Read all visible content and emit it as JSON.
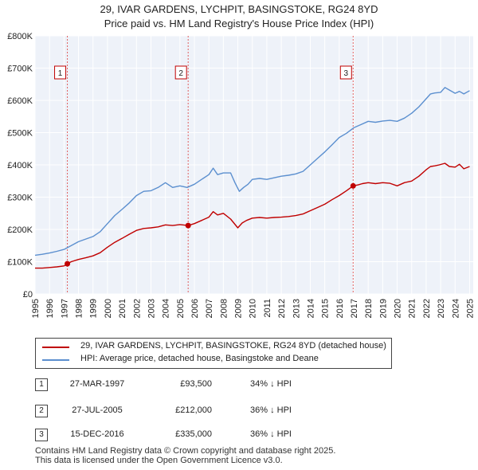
{
  "title_line1": "29, IVAR GARDENS, LYCHPIT, BASINGSTOKE, RG24 8YD",
  "title_line2": "Price paid vs. HM Land Registry's House Price Index (HPI)",
  "chart_data": {
    "type": "line",
    "title": "29, IVAR GARDENS, LYCHPIT, BASINGSTOKE, RG24 8YD",
    "subtitle": "Price paid vs. HM Land Registry's House Price Index (HPI)",
    "xlabel": "",
    "ylabel": "",
    "xlim": [
      1995,
      2025.25
    ],
    "ylim": [
      0,
      800000
    ],
    "y_ticks": [
      0,
      100000,
      200000,
      300000,
      400000,
      500000,
      600000,
      700000,
      800000
    ],
    "y_tick_labels": [
      "£0",
      "£100K",
      "£200K",
      "£300K",
      "£400K",
      "£500K",
      "£600K",
      "£700K",
      "£800K"
    ],
    "x_ticks": [
      1995,
      1996,
      1997,
      1998,
      1999,
      2000,
      2001,
      2002,
      2003,
      2004,
      2005,
      2006,
      2007,
      2008,
      2009,
      2010,
      2011,
      2012,
      2013,
      2014,
      2015,
      2016,
      2017,
      2018,
      2019,
      2020,
      2021,
      2022,
      2023,
      2024,
      2025
    ],
    "grid": true,
    "series": [
      {
        "name": "29, IVAR GARDENS, LYCHPIT, BASINGSTOKE, RG24 8YD (detached house)",
        "color": "#c00000",
        "x": [
          1995,
          1995.5,
          1996,
          1996.5,
          1997.0,
          1997.23,
          1997.5,
          1998,
          1998.5,
          1999,
          1999.5,
          2000,
          2000.5,
          2001,
          2001.5,
          2002,
          2002.5,
          2003,
          2003.5,
          2004,
          2004.5,
          2005,
          2005.57,
          2006,
          2006.5,
          2007,
          2007.3,
          2007.6,
          2008,
          2008.5,
          2009,
          2009.3,
          2009.6,
          2010,
          2010.5,
          2011,
          2011.5,
          2012,
          2012.5,
          2013,
          2013.5,
          2014,
          2014.5,
          2015,
          2015.5,
          2016,
          2016.5,
          2016.96,
          2017.3,
          2017.6,
          2018,
          2018.5,
          2019,
          2019.5,
          2020,
          2020.5,
          2021,
          2021.5,
          2022,
          2022.3,
          2022.6,
          2022.9,
          2023.3,
          2023.6,
          2024,
          2024.3,
          2024.6,
          2025
        ],
        "values": [
          80000,
          80000,
          82000,
          84000,
          87000,
          93500,
          100000,
          107000,
          112000,
          118000,
          128000,
          145000,
          160000,
          172000,
          185000,
          197000,
          203000,
          205000,
          208000,
          214000,
          212000,
          215000,
          212000,
          218000,
          228000,
          238000,
          255000,
          245000,
          250000,
          232000,
          205000,
          220000,
          228000,
          235000,
          237000,
          235000,
          237000,
          238000,
          240000,
          243000,
          248000,
          258000,
          268000,
          278000,
          292000,
          305000,
          320000,
          335000,
          338000,
          342000,
          345000,
          342000,
          345000,
          343000,
          335000,
          345000,
          350000,
          365000,
          385000,
          395000,
          397000,
          400000,
          405000,
          395000,
          393000,
          402000,
          388000,
          395000
        ]
      },
      {
        "name": "HPI: Average price, detached house, Basingstoke and Deane",
        "color": "#5b8fcf",
        "x": [
          1995,
          1995.5,
          1996,
          1996.5,
          1997,
          1997.5,
          1998,
          1998.5,
          1999,
          1999.5,
          2000,
          2000.5,
          2001,
          2001.5,
          2002,
          2002.5,
          2003,
          2003.5,
          2004,
          2004.5,
          2005,
          2005.5,
          2006,
          2006.5,
          2007,
          2007.3,
          2007.6,
          2008,
          2008.5,
          2008.8,
          2009.1,
          2009.4,
          2009.7,
          2010,
          2010.5,
          2011,
          2011.5,
          2012,
          2012.5,
          2013,
          2013.5,
          2014,
          2014.5,
          2015,
          2015.5,
          2016,
          2016.5,
          2017,
          2017.5,
          2018,
          2018.5,
          2019,
          2019.5,
          2020,
          2020.5,
          2021,
          2021.5,
          2022,
          2022.3,
          2022.6,
          2023,
          2023.3,
          2023.6,
          2024,
          2024.3,
          2024.6,
          2025
        ],
        "values": [
          120000,
          123000,
          127000,
          132000,
          138000,
          150000,
          162000,
          170000,
          178000,
          193000,
          218000,
          243000,
          262000,
          282000,
          305000,
          318000,
          320000,
          330000,
          345000,
          330000,
          335000,
          330000,
          340000,
          355000,
          370000,
          390000,
          370000,
          375000,
          375000,
          345000,
          318000,
          330000,
          340000,
          355000,
          358000,
          355000,
          360000,
          365000,
          368000,
          372000,
          380000,
          400000,
          420000,
          440000,
          462000,
          485000,
          498000,
          515000,
          525000,
          535000,
          532000,
          536000,
          538000,
          535000,
          545000,
          560000,
          580000,
          605000,
          620000,
          623000,
          625000,
          640000,
          632000,
          622000,
          628000,
          620000,
          630000
        ]
      }
    ],
    "sale_markers": [
      {
        "label": "1",
        "x": 1997.23,
        "value": 93500
      },
      {
        "label": "2",
        "x": 2005.57,
        "value": 212000
      },
      {
        "label": "3",
        "x": 2016.96,
        "value": 335000
      }
    ]
  },
  "legend": {
    "property_label": "29, IVAR GARDENS, LYCHPIT, BASINGSTOKE, RG24 8YD (detached house)",
    "hpi_label": "HPI: Average price, detached house, Basingstoke and Deane",
    "property_color": "#c00000",
    "hpi_color": "#5b8fcf"
  },
  "transactions": [
    {
      "num": "1",
      "date": "27-MAR-1997",
      "price": "£93,500",
      "hpi": "34% ↓ HPI"
    },
    {
      "num": "2",
      "date": "27-JUL-2005",
      "price": "£212,000",
      "hpi": "36% ↓ HPI"
    },
    {
      "num": "3",
      "date": "15-DEC-2016",
      "price": "£335,000",
      "hpi": "36% ↓ HPI"
    }
  ],
  "footer_line1": "Contains HM Land Registry data © Crown copyright and database right 2025.",
  "footer_line2": "This data is licensed under the Open Government Licence v3.0."
}
